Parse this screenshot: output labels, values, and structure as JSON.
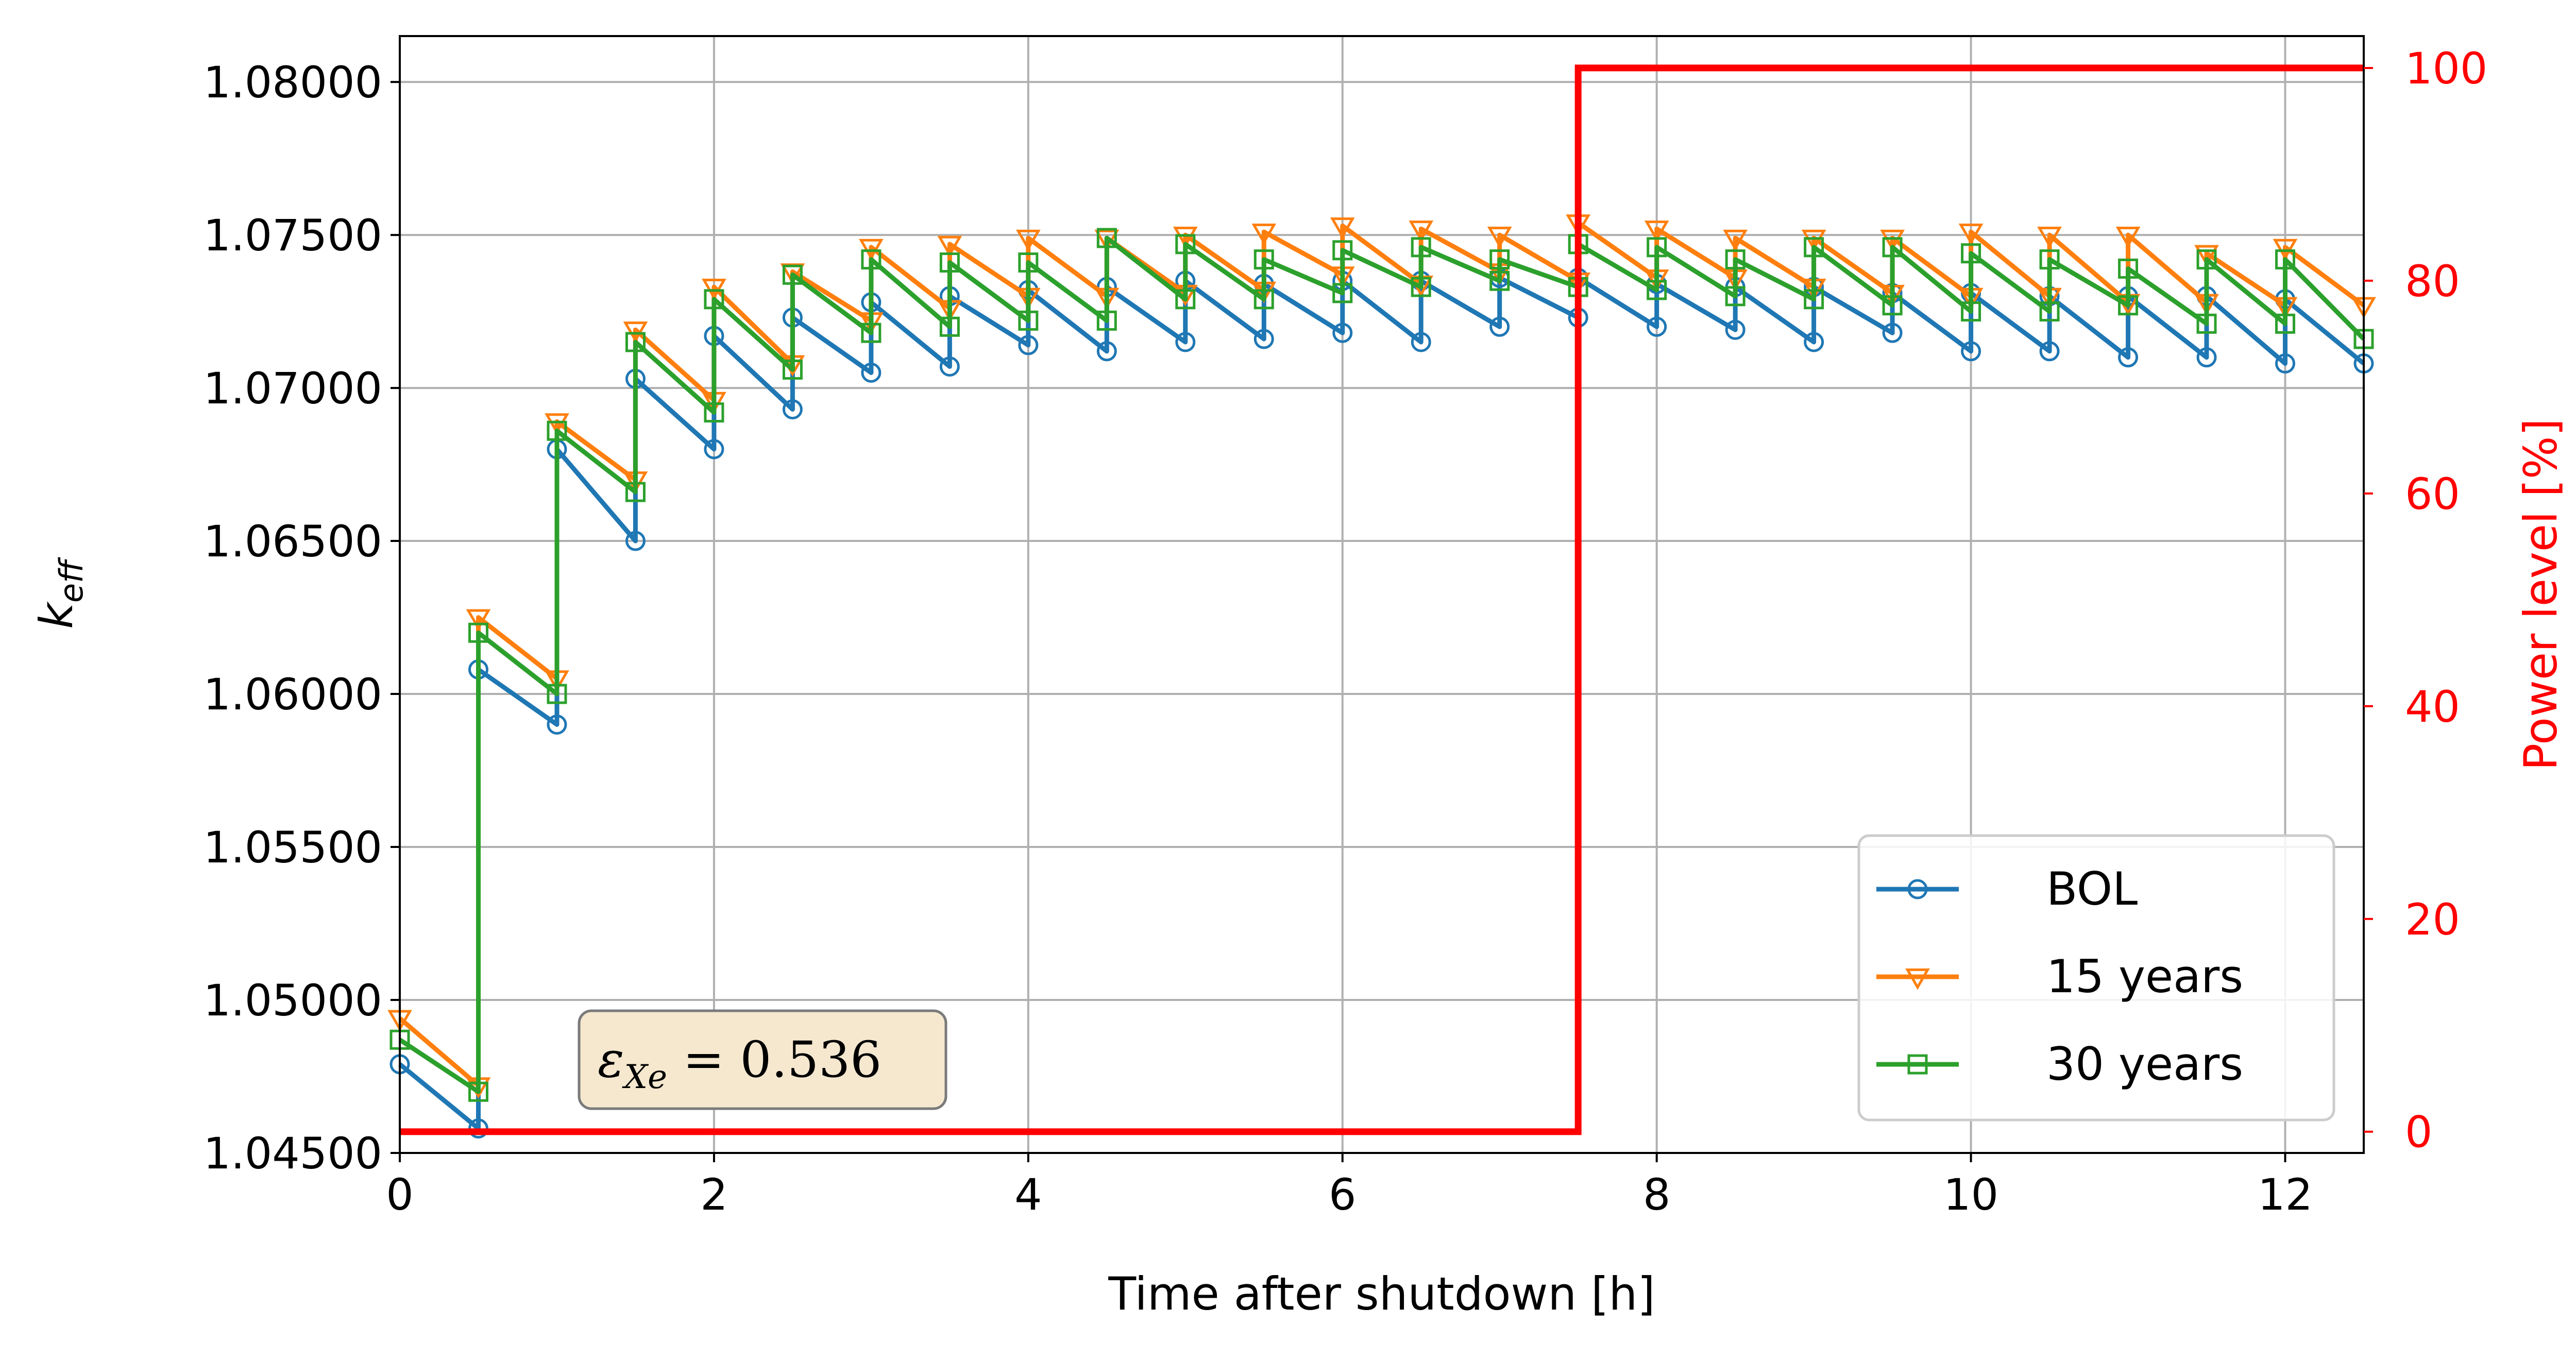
{
  "chart_data": {
    "type": "line",
    "xlabel": "Time after shutdown [h]",
    "ylabel": "k",
    "ylabel_sub": "eff",
    "y2label": "Power level [%]",
    "xlim": [
      0,
      12.5
    ],
    "ylim": [
      1.045,
      1.0815
    ],
    "y2lim": [
      -2,
      103
    ],
    "xticks": [
      "0",
      "2",
      "4",
      "6",
      "8",
      "10",
      "12"
    ],
    "xtick_values": [
      0,
      2,
      4,
      6,
      8,
      10,
      12
    ],
    "yticks": [
      "1.04500",
      "1.05000",
      "1.05500",
      "1.06000",
      "1.06500",
      "1.07000",
      "1.07500",
      "1.08000"
    ],
    "ytick_values": [
      1.045,
      1.05,
      1.055,
      1.06,
      1.065,
      1.07,
      1.075,
      1.08
    ],
    "y2ticks": [
      "0",
      "20",
      "40",
      "60",
      "80",
      "100"
    ],
    "y2tick_values": [
      0,
      20,
      40,
      60,
      80,
      100
    ],
    "grid": true,
    "legend_position": "bottom-right",
    "annotation": {
      "symbol": "ε",
      "sub": "Xe",
      "text": " = 0.536"
    },
    "colors": {
      "bol": "#1f77b4",
      "y15": "#ff7f0e",
      "y30": "#2ca02c",
      "power": "#ff0000",
      "annotation_bg": "#f5e8cf"
    },
    "series": [
      {
        "name": "BOL",
        "color": "#1f77b4",
        "marker": "circle",
        "x": [
          0,
          0.5,
          0.5,
          1,
          1,
          1.5,
          1.5,
          2,
          2,
          2.5,
          2.5,
          3,
          3,
          3.5,
          3.5,
          4,
          4,
          4.5,
          4.5,
          5,
          5,
          5.5,
          5.5,
          6,
          6,
          6.5,
          6.5,
          7,
          7,
          7.5,
          7.5,
          8,
          8,
          8.5,
          8.5,
          9,
          9,
          9.5,
          9.5,
          10,
          10,
          10.5,
          10.5,
          11,
          11,
          11.5,
          11.5,
          12,
          12,
          12.5
        ],
        "y": [
          1.0479,
          1.0458,
          1.0608,
          1.059,
          1.068,
          1.065,
          1.0703,
          1.068,
          1.0717,
          1.0693,
          1.0723,
          1.0705,
          1.0728,
          1.0707,
          1.073,
          1.0714,
          1.0732,
          1.0712,
          1.0733,
          1.0715,
          1.0735,
          1.0716,
          1.0734,
          1.0718,
          1.0735,
          1.0715,
          1.0735,
          1.072,
          1.0736,
          1.0723,
          1.0736,
          1.072,
          1.0734,
          1.0719,
          1.0733,
          1.0715,
          1.0733,
          1.0718,
          1.0731,
          1.0712,
          1.0731,
          1.0712,
          1.073,
          1.071,
          1.073,
          1.071,
          1.073,
          1.0708,
          1.0729,
          1.0708
        ]
      },
      {
        "name": "15 years",
        "color": "#ff7f0e",
        "marker": "triangle-down",
        "x": [
          0,
          0.5,
          0.5,
          1,
          1,
          1.5,
          1.5,
          2,
          2,
          2.5,
          2.5,
          3,
          3,
          3.5,
          3.5,
          4,
          4,
          4.5,
          4.5,
          5,
          5,
          5.5,
          5.5,
          6,
          6,
          6.5,
          6.5,
          7,
          7,
          7.5,
          7.5,
          8,
          8,
          8.5,
          8.5,
          9,
          9,
          9.5,
          9.5,
          10,
          10,
          10.5,
          10.5,
          11,
          11,
          11.5,
          11.5,
          12,
          12,
          12.5
        ],
        "y": [
          1.0494,
          1.0472,
          1.0625,
          1.0605,
          1.0689,
          1.067,
          1.0719,
          1.0696,
          1.0733,
          1.0708,
          1.0738,
          1.0722,
          1.0746,
          1.0726,
          1.0747,
          1.073,
          1.0749,
          1.073,
          1.0749,
          1.0731,
          1.075,
          1.0732,
          1.0751,
          1.0737,
          1.0753,
          1.0734,
          1.0752,
          1.0738,
          1.075,
          1.0735,
          1.0754,
          1.0736,
          1.0752,
          1.0736,
          1.0749,
          1.0733,
          1.0749,
          1.0731,
          1.0749,
          1.073,
          1.0751,
          1.073,
          1.075,
          1.0728,
          1.075,
          1.0728,
          1.0744,
          1.0727,
          1.0746,
          1.0727
        ]
      },
      {
        "name": "30 years",
        "color": "#2ca02c",
        "marker": "square",
        "x": [
          0,
          0.5,
          0.5,
          1,
          1,
          1.5,
          1.5,
          2,
          2,
          2.5,
          2.5,
          3,
          3,
          3.5,
          3.5,
          4,
          4,
          4.5,
          4.5,
          5,
          5,
          5.5,
          5.5,
          6,
          6,
          6.5,
          6.5,
          7,
          7,
          7.5,
          7.5,
          8,
          8,
          8.5,
          8.5,
          9,
          9,
          9.5,
          9.5,
          10,
          10,
          10.5,
          10.5,
          11,
          11,
          11.5,
          11.5,
          12,
          12,
          12.5
        ],
        "y": [
          1.0487,
          1.047,
          1.062,
          1.06,
          1.0686,
          1.0666,
          1.0715,
          1.0692,
          1.0729,
          1.0706,
          1.0737,
          1.0718,
          1.0742,
          1.072,
          1.0741,
          1.0722,
          1.0741,
          1.0722,
          1.0749,
          1.0729,
          1.0747,
          1.0729,
          1.0742,
          1.0731,
          1.0745,
          1.0733,
          1.0746,
          1.0735,
          1.0742,
          1.0733,
          1.0747,
          1.0732,
          1.0746,
          1.073,
          1.0742,
          1.0729,
          1.0746,
          1.0727,
          1.0746,
          1.0725,
          1.0744,
          1.0725,
          1.0742,
          1.0727,
          1.0739,
          1.0721,
          1.0742,
          1.0721,
          1.0742,
          1.0716
        ]
      }
    ],
    "power_series": {
      "name": "Power level",
      "color": "#ff0000",
      "x": [
        0,
        7.5,
        7.5,
        12.5
      ],
      "y": [
        0,
        0,
        100,
        100
      ]
    }
  }
}
